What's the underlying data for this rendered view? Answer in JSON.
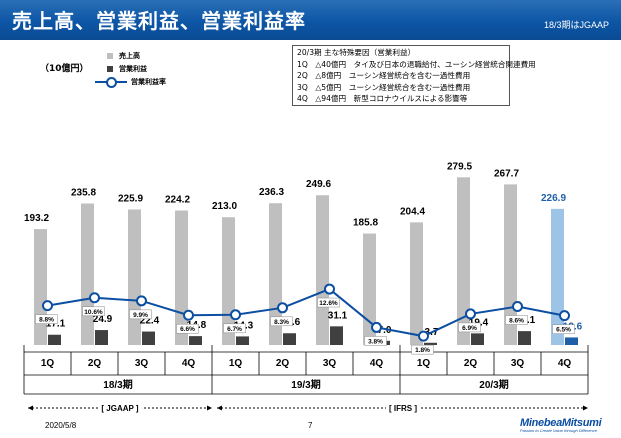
{
  "header": {
    "title": "売上高、営業利益、営業利益率",
    "subtitle": "18/3期はJGAAP"
  },
  "unit": "（10億円）",
  "legend": {
    "sales": "売上高",
    "op": "営業利益",
    "margin": "営業利益率"
  },
  "note": {
    "lines": [
      "20/3期 主な特殊要因（営業利益）",
      "1Q　△40億円　タイ及び日本の退職給付、ユーシン経営統合関連費用",
      "2Q　△8億円　ユーシン経営統合を含む一過性費用",
      "3Q　△5億円　ユーシン経営統合を含む一過性費用",
      "4Q　△94億円　新型コロナウイルスによる影響等"
    ]
  },
  "colors": {
    "sales": "#bfbfbf",
    "op": "#404040",
    "sales_hl": "#9dc3e6",
    "op_hl": "#1f5fa8",
    "line": "#0b4ea2",
    "header": "#0d56a6"
  },
  "chart_data": {
    "type": "bar",
    "categories": [
      "1Q",
      "2Q",
      "3Q",
      "4Q",
      "1Q",
      "2Q",
      "3Q",
      "4Q",
      "1Q",
      "2Q",
      "3Q",
      "4Q"
    ],
    "series": [
      {
        "name": "売上高",
        "values": [
          193.2,
          235.8,
          225.9,
          224.2,
          213.0,
          236.3,
          249.6,
          185.8,
          204.4,
          279.5,
          267.7,
          226.9
        ]
      },
      {
        "name": "営業利益",
        "values": [
          17.1,
          24.9,
          22.4,
          14.8,
          14.3,
          19.6,
          31.1,
          7.0,
          3.7,
          19.4,
          23.1,
          12.6
        ]
      },
      {
        "name": "営業利益率",
        "values": [
          8.8,
          10.6,
          9.9,
          6.6,
          6.7,
          8.3,
          12.6,
          3.8,
          1.8,
          6.9,
          8.6,
          6.5
        ],
        "unit": "%"
      }
    ],
    "value_labels_sales": [
      "193.2",
      "235.8",
      "225.9",
      "224.2",
      "213.0",
      "236.3",
      "249.6",
      "185.8",
      "204.4",
      "279.5",
      "267.7",
      "226.9"
    ],
    "value_labels_op": [
      "17.1",
      "24.9",
      "22.4",
      "14.8",
      "14.3",
      "19.6",
      "31.1",
      "7.0",
      "3.7",
      "19.4",
      "23.1",
      "12.6"
    ],
    "margin_labels": [
      "8.8%",
      "10.6%",
      "9.9%",
      "6.6%",
      "6.7%",
      "8.3%",
      "12.6%",
      "3.8%",
      "1.8%",
      "6.9%",
      "8.6%",
      "6.5%"
    ],
    "highlight_index": 11,
    "groups": [
      "18/3期",
      "19/3期",
      "20/3期"
    ],
    "standards": [
      "[ JGAAP ]",
      "[ IFRS ]"
    ]
  },
  "footer": {
    "date": "2020/5/8",
    "page": "7",
    "logo": "MinebeaMitsumi",
    "tagline": "Passion to Create Value through Difference"
  }
}
